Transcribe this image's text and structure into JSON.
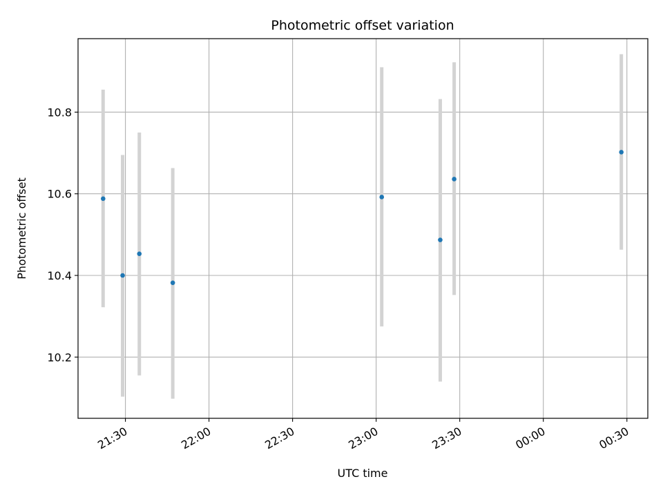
{
  "chart_data": {
    "type": "scatter",
    "title": "Photometric offset variation",
    "xlabel": "UTC time",
    "ylabel": "Photometric offset",
    "x_ticks": [
      "21:30",
      "22:00",
      "22:30",
      "23:00",
      "23:30",
      "00:00",
      "00:30"
    ],
    "x_tick_minutes": [
      1290,
      1320,
      1350,
      1380,
      1410,
      1440,
      1470
    ],
    "xlim_minutes": [
      1273,
      1477.5
    ],
    "y_ticks": [
      "10.2",
      "10.4",
      "10.6",
      "10.8"
    ],
    "ylim": [
      10.05,
      10.98
    ],
    "grid": true,
    "series": [
      {
        "marker_color": "#1f77b4",
        "errorbar_color": "#d3d3d3",
        "points": [
          {
            "x": "21:22",
            "y": 10.588,
            "err_low": 10.322,
            "err_high": 10.855
          },
          {
            "x": "21:29",
            "y": 10.4,
            "err_low": 10.103,
            "err_high": 10.695
          },
          {
            "x": "21:35",
            "y": 10.453,
            "err_low": 10.155,
            "err_high": 10.75
          },
          {
            "x": "21:47",
            "y": 10.382,
            "err_low": 10.098,
            "err_high": 10.663
          },
          {
            "x": "23:02",
            "y": 10.592,
            "err_low": 10.275,
            "err_high": 10.91
          },
          {
            "x": "23:23",
            "y": 10.487,
            "err_low": 10.14,
            "err_high": 10.832
          },
          {
            "x": "23:28",
            "y": 10.636,
            "err_low": 10.352,
            "err_high": 10.922
          },
          {
            "x": "00:28",
            "y": 10.702,
            "err_low": 10.463,
            "err_high": 10.942
          }
        ]
      }
    ]
  }
}
